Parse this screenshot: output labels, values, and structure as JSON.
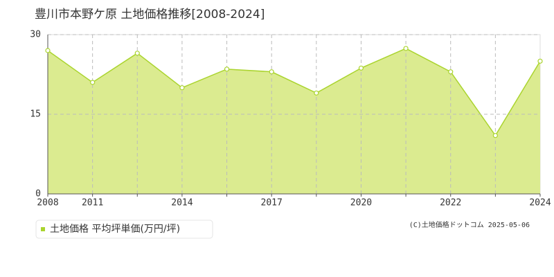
{
  "title": "豊川市本野ケ原 土地価格推移[2008-2024]",
  "chart_data": {
    "type": "area",
    "categories": [
      "2008",
      "2011",
      null,
      "2014",
      null,
      "2017",
      null,
      "2020",
      null,
      "2022",
      null,
      "2024"
    ],
    "series": [
      {
        "name": "土地価格 平均坪単価(万円/坪)",
        "color": "#aad42e",
        "values": [
          27,
          21,
          26.5,
          20,
          23.5,
          23,
          19,
          23.7,
          27.4,
          23,
          11,
          25
        ]
      }
    ],
    "ylim": [
      0,
      30
    ],
    "yticks": [
      0,
      15,
      30
    ],
    "grid": true
  },
  "copyright": "(C)土地価格ドットコム 2025-05-06"
}
